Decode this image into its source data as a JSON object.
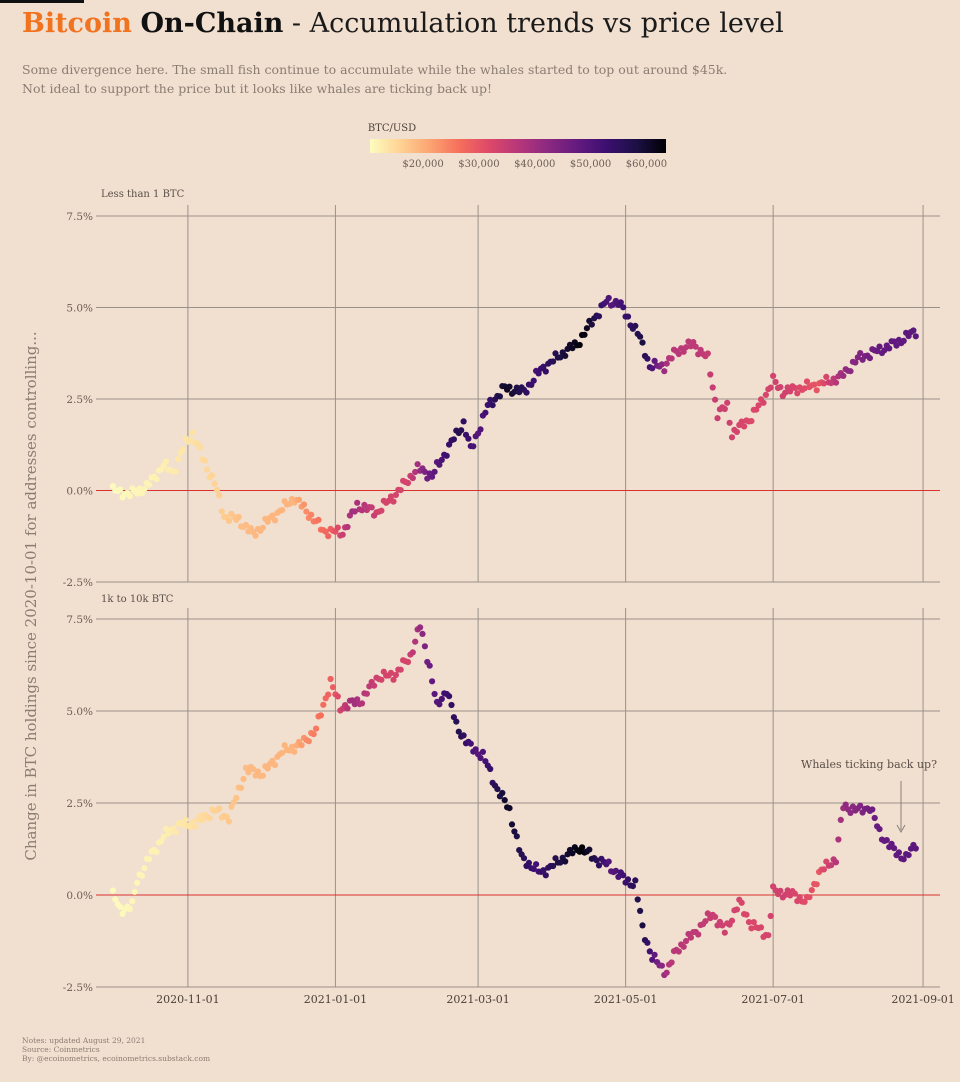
{
  "header": {
    "brand": "Bitcoin",
    "onchain": "On-Chain",
    "separator": " - ",
    "rest": "Accumulation trends vs price level",
    "subtitle_line1": "Some divergence here. The small fish continue to accumulate while the whales started to top out around $45k.",
    "subtitle_line2": "Not ideal to support the price but it looks like whales are ticking back up!"
  },
  "notes": {
    "line1": "Notes: updated August 29, 2021",
    "line2": "Source: Coinmetrics",
    "line3": "By: @ecoinometrics, ecoinometrics.substack.com"
  },
  "chart_data": {
    "type": "scatter",
    "ylabel": "Change in BTC holdings since 2020-10-01 for addresses controlling...",
    "x_ticks": [
      "2020-11-01",
      "2021-01-01",
      "2021-03-01",
      "2021-05-01",
      "2021-07-01",
      "2021-09-01"
    ],
    "xlim": [
      "2020-09-24",
      "2021-09-08"
    ],
    "y_ticks": [
      "-2.5%",
      "0.0%",
      "2.5%",
      "5.0%",
      "7.5%"
    ],
    "ylim": [
      -2.5,
      7.8
    ],
    "reference_line": 0,
    "color_scale": {
      "title": "BTC/USD",
      "ticks": [
        "$20,000",
        "$30,000",
        "$40,000",
        "$50,000",
        "$60,000"
      ],
      "tick_values": [
        20000,
        30000,
        40000,
        50000,
        60000
      ],
      "range": [
        10500,
        63500
      ],
      "palette": [
        "#fcfdbf",
        "#fed395",
        "#fca572",
        "#f6705c",
        "#de4968",
        "#b73779",
        "#8c2981",
        "#641a80",
        "#3b0f70",
        "#1c1044",
        "#000004"
      ]
    },
    "price_keypoints": [
      [
        "2020-10-01",
        10800
      ],
      [
        "2020-10-20",
        12000
      ],
      [
        "2020-11-01",
        13700
      ],
      [
        "2020-11-10",
        15400
      ],
      [
        "2020-11-25",
        18500
      ],
      [
        "2020-12-01",
        19000
      ],
      [
        "2020-12-15",
        19400
      ],
      [
        "2020-12-20",
        23500
      ],
      [
        "2020-12-31",
        29000
      ],
      [
        "2021-01-08",
        40000
      ],
      [
        "2021-01-20",
        33000
      ],
      [
        "2021-01-31",
        33000
      ],
      [
        "2021-02-08",
        46000
      ],
      [
        "2021-02-21",
        57000
      ],
      [
        "2021-03-01",
        49000
      ],
      [
        "2021-03-13",
        61000
      ],
      [
        "2021-03-25",
        52000
      ],
      [
        "2021-04-13",
        63500
      ],
      [
        "2021-04-25",
        49000
      ],
      [
        "2021-05-08",
        58500
      ],
      [
        "2021-05-12",
        50000
      ],
      [
        "2021-05-19",
        37000
      ],
      [
        "2021-05-31",
        36000
      ],
      [
        "2021-06-22",
        32000
      ],
      [
        "2021-07-05",
        34000
      ],
      [
        "2021-07-20",
        29800
      ],
      [
        "2021-07-31",
        41500
      ],
      [
        "2021-08-14",
        47500
      ],
      [
        "2021-08-29",
        48800
      ]
    ],
    "panels": [
      {
        "label": "Less than 1 BTC",
        "series_keypoints": [
          [
            "2020-10-01",
            0.0
          ],
          [
            "2020-10-08",
            -0.1
          ],
          [
            "2020-10-15",
            0.1
          ],
          [
            "2020-10-22",
            0.7
          ],
          [
            "2020-10-26",
            0.5
          ],
          [
            "2020-10-31",
            1.3
          ],
          [
            "2020-11-03",
            1.55
          ],
          [
            "2020-11-07",
            0.9
          ],
          [
            "2020-11-12",
            0.2
          ],
          [
            "2020-11-16",
            -0.7
          ],
          [
            "2020-11-22",
            -0.8
          ],
          [
            "2020-11-28",
            -1.2
          ],
          [
            "2020-12-03",
            -0.9
          ],
          [
            "2020-12-10",
            -0.5
          ],
          [
            "2020-12-15",
            -0.2
          ],
          [
            "2020-12-22",
            -0.7
          ],
          [
            "2020-12-27",
            -1.1
          ],
          [
            "2021-01-04",
            -1.15
          ],
          [
            "2021-01-10",
            -0.4
          ],
          [
            "2021-01-18",
            -0.6
          ],
          [
            "2021-01-26",
            -0.1
          ],
          [
            "2021-02-04",
            0.6
          ],
          [
            "2021-02-10",
            0.4
          ],
          [
            "2021-02-17",
            1.2
          ],
          [
            "2021-02-23",
            1.85
          ],
          [
            "2021-02-26",
            1.1
          ],
          [
            "2021-03-05",
            2.3
          ],
          [
            "2021-03-12",
            2.8
          ],
          [
            "2021-03-20",
            2.7
          ],
          [
            "2021-03-27",
            3.3
          ],
          [
            "2021-04-06",
            3.8
          ],
          [
            "2021-04-11",
            4.0
          ],
          [
            "2021-04-19",
            4.8
          ],
          [
            "2021-04-23",
            5.15
          ],
          [
            "2021-04-28",
            5.15
          ],
          [
            "2021-05-02",
            4.7
          ],
          [
            "2021-05-06",
            4.3
          ],
          [
            "2021-05-09",
            3.8
          ],
          [
            "2021-05-11",
            3.4
          ],
          [
            "2021-05-17",
            3.4
          ],
          [
            "2021-05-22",
            3.8
          ],
          [
            "2021-05-29",
            4.0
          ],
          [
            "2021-06-04",
            3.6
          ],
          [
            "2021-06-08",
            2.1
          ],
          [
            "2021-06-12",
            2.3
          ],
          [
            "2021-06-14",
            1.55
          ],
          [
            "2021-06-22",
            2.0
          ],
          [
            "2021-06-26",
            2.4
          ],
          [
            "2021-07-01",
            3.0
          ],
          [
            "2021-07-05",
            2.7
          ],
          [
            "2021-07-20",
            2.9
          ],
          [
            "2021-07-29",
            3.1
          ],
          [
            "2021-08-05",
            3.6
          ],
          [
            "2021-08-20",
            4.0
          ],
          [
            "2021-08-29",
            4.35
          ]
        ]
      },
      {
        "label": "1k to 10k BTC",
        "annotation": "Whales ticking back up?",
        "series_keypoints": [
          [
            "2020-10-01",
            0.0
          ],
          [
            "2020-10-04",
            -0.4
          ],
          [
            "2020-10-09",
            -0.3
          ],
          [
            "2020-10-11",
            0.4
          ],
          [
            "2020-10-16",
            1.0
          ],
          [
            "2020-10-22",
            1.6
          ],
          [
            "2020-10-28",
            1.9
          ],
          [
            "2020-11-04",
            1.95
          ],
          [
            "2020-11-12",
            2.3
          ],
          [
            "2020-11-18",
            2.1
          ],
          [
            "2020-11-25",
            3.4
          ],
          [
            "2020-12-02",
            3.3
          ],
          [
            "2020-12-10",
            3.9
          ],
          [
            "2020-12-18",
            4.1
          ],
          [
            "2020-12-24",
            4.5
          ],
          [
            "2020-12-30",
            5.8
          ],
          [
            "2021-01-03",
            5.1
          ],
          [
            "2021-01-12",
            5.3
          ],
          [
            "2021-01-18",
            5.9
          ],
          [
            "2021-01-26",
            6.0
          ],
          [
            "2021-02-01",
            6.5
          ],
          [
            "2021-02-05",
            7.3
          ],
          [
            "2021-02-09",
            6.2
          ],
          [
            "2021-02-12",
            5.1
          ],
          [
            "2021-02-16",
            5.6
          ],
          [
            "2021-02-20",
            4.6
          ],
          [
            "2021-02-26",
            4.0
          ],
          [
            "2021-03-03",
            3.8
          ],
          [
            "2021-03-08",
            3.0
          ],
          [
            "2021-03-14",
            2.3
          ],
          [
            "2021-03-19",
            1.0
          ],
          [
            "2021-03-27",
            0.6
          ],
          [
            "2021-04-03",
            0.9
          ],
          [
            "2021-04-12",
            1.3
          ],
          [
            "2021-04-18",
            1.0
          ],
          [
            "2021-04-24",
            0.8
          ],
          [
            "2021-05-01",
            0.4
          ],
          [
            "2021-05-05",
            0.3
          ],
          [
            "2021-05-08",
            -0.9
          ],
          [
            "2021-05-12",
            -1.7
          ],
          [
            "2021-05-18",
            -2.1
          ],
          [
            "2021-05-22",
            -1.5
          ],
          [
            "2021-05-30",
            -1.0
          ],
          [
            "2021-06-06",
            -0.5
          ],
          [
            "2021-06-11",
            -1.0
          ],
          [
            "2021-06-17",
            -0.2
          ],
          [
            "2021-06-22",
            -0.8
          ],
          [
            "2021-06-29",
            -1.1
          ],
          [
            "2021-07-01",
            0.1
          ],
          [
            "2021-07-10",
            0.0
          ],
          [
            "2021-07-15",
            -0.2
          ],
          [
            "2021-07-20",
            0.6
          ],
          [
            "2021-07-27",
            1.0
          ],
          [
            "2021-07-30",
            2.4
          ],
          [
            "2021-08-06",
            2.3
          ],
          [
            "2021-08-10",
            2.4
          ],
          [
            "2021-08-14",
            1.7
          ],
          [
            "2021-08-20",
            1.2
          ],
          [
            "2021-08-25",
            1.0
          ],
          [
            "2021-08-29",
            1.4
          ]
        ]
      }
    ]
  }
}
